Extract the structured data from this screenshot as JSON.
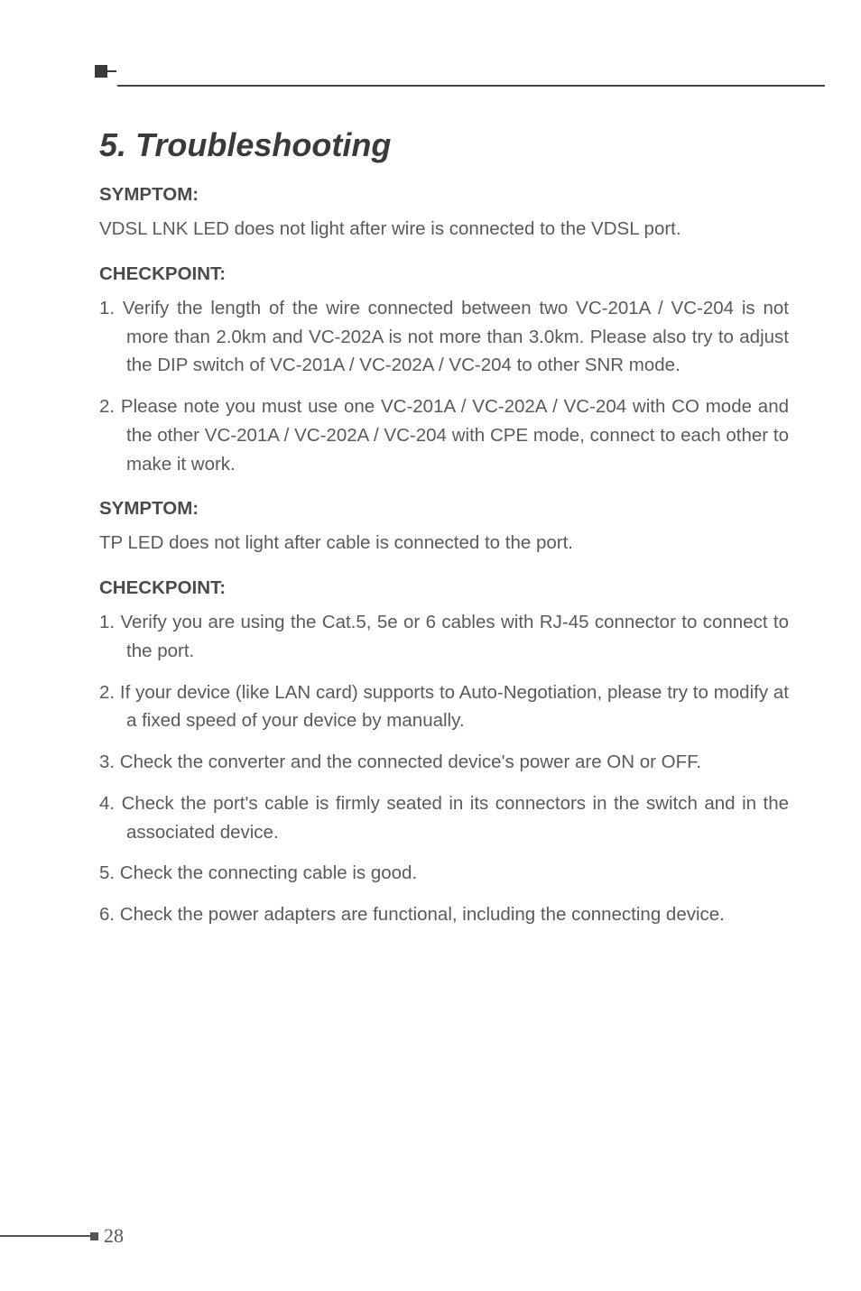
{
  "page": {
    "number": "28",
    "chapter_title": "5. Troubleshooting",
    "sections": [
      {
        "heading": "SYMPTOM:",
        "body": "VDSL LNK LED does not light after wire is connected to the VDSL port."
      },
      {
        "heading": "CHECKPOINT:",
        "list": [
          "1. Verify the length of the wire connected between two VC-201A / VC-204 is not more than 2.0km and VC-202A is not more than 3.0km. Please also try to adjust the DIP switch of VC-201A / VC-202A / VC-204 to other SNR mode.",
          "2. Please note you must use one VC-201A / VC-202A / VC-204 with CO mode and the other VC-201A / VC-202A / VC-204 with CPE mode, connect to each other to make it work."
        ]
      },
      {
        "heading": "SYMPTOM:",
        "body": "TP LED does not light after cable is connected to the port."
      },
      {
        "heading": "CHECKPOINT:",
        "list": [
          "1. Verify you are using the Cat.5, 5e or 6 cables with RJ-45 connector to connect to the port.",
          "2. If your device (like LAN card) supports to Auto-Negotiation, please try to modify at a fixed speed of your device by manually.",
          "3. Check the converter and the connected device's power are ON or OFF.",
          "4. Check the port's cable is firmly seated in its connectors in the switch and in the associated device.",
          "5. Check the connecting cable is good.",
          "6. Check the power adapters are functional, including the connecting device."
        ]
      }
    ]
  }
}
